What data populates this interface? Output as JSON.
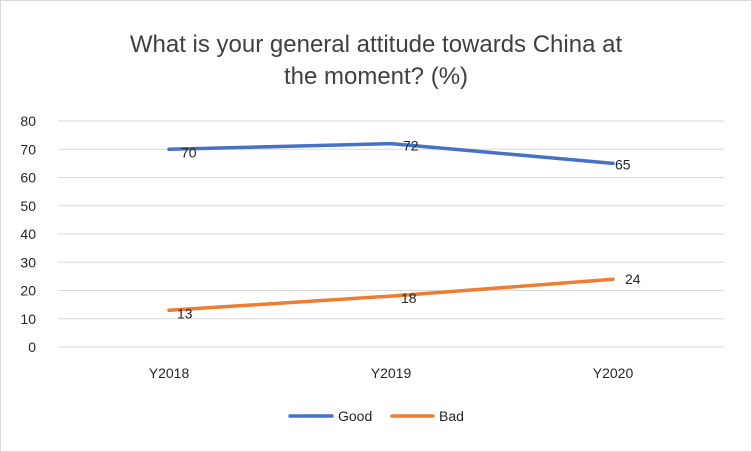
{
  "chart_data": {
    "type": "line",
    "title_lines": [
      "What is your general attitude towards China at",
      "the moment?  (%)"
    ],
    "categories": [
      "Y2018",
      "Y2019",
      "Y2020"
    ],
    "series": [
      {
        "name": "Good",
        "values": [
          70,
          72,
          65
        ],
        "color": "#4472c4"
      },
      {
        "name": "Bad",
        "values": [
          13,
          18,
          24
        ],
        "color": "#ed7d31"
      }
    ],
    "ylim": [
      0,
      80
    ],
    "yticks": [
      0,
      10,
      20,
      30,
      40,
      50,
      60,
      70,
      80
    ],
    "grid": true,
    "legend_position": "bottom"
  }
}
